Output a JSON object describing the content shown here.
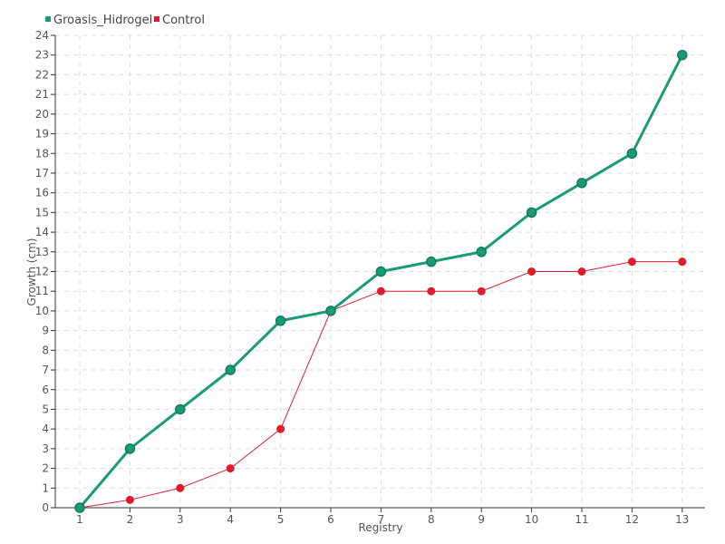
{
  "chart_data": {
    "type": "line",
    "x": [
      "1",
      "2",
      "3",
      "4",
      "5",
      "6",
      "7",
      "8",
      "9",
      "10",
      "11",
      "12",
      "13"
    ],
    "series": [
      {
        "name": "Groasis_Hidrogel",
        "color": "#1a9b78",
        "values": [
          0,
          3,
          5,
          7,
          9.5,
          10,
          12,
          12.5,
          13,
          15,
          16.5,
          18,
          23
        ]
      },
      {
        "name": "Control",
        "color": "#e01c2b",
        "values": [
          0,
          0.4,
          1,
          2,
          4,
          10,
          11,
          11,
          11,
          12,
          12,
          12.5,
          12.5
        ]
      }
    ],
    "xlabel": "Registry",
    "ylabel": "Growth (cm)",
    "ylim": [
      0,
      24
    ],
    "yticks": [
      "0",
      "1",
      "2",
      "3",
      "4",
      "5",
      "6",
      "7",
      "8",
      "9",
      "10",
      "11",
      "12",
      "13",
      "14",
      "15",
      "16",
      "17",
      "18",
      "19",
      "20",
      "21",
      "22",
      "23",
      "24"
    ],
    "grid": true,
    "legend": "top-left"
  }
}
